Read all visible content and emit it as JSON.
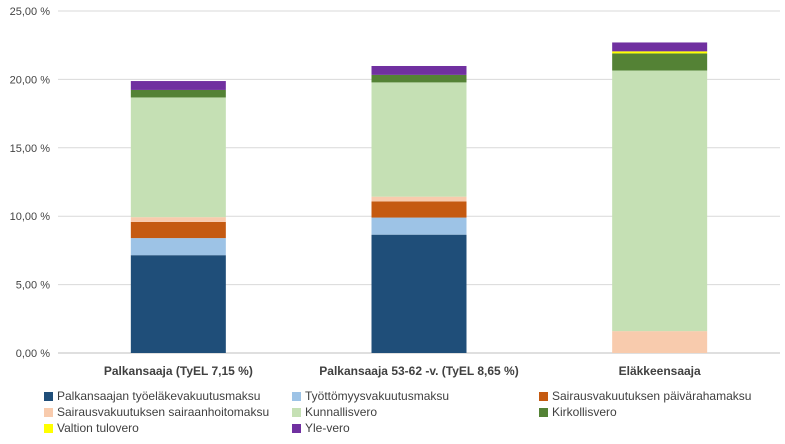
{
  "chart_data": {
    "type": "bar",
    "stacked": true,
    "title": "",
    "xlabel": "",
    "ylabel": "",
    "ylim": [
      0,
      25
    ],
    "y_ticks": [
      0,
      5,
      10,
      15,
      20,
      25
    ],
    "y_tick_labels": [
      "0,00 %",
      "5,00 %",
      "10,00 %",
      "15,00 %",
      "20,00 %",
      "25,00 %"
    ],
    "grid": true,
    "legend_position": "bottom",
    "categories": [
      "Palkansaaja (TyEL 7,15 %)",
      "Palkansaaja 53-62 -v. (TyEL 8,65 %)",
      "Eläkkeensaaja"
    ],
    "series": [
      {
        "name": "Palkansaajan työeläkevakuutusmaksu",
        "color": "#1f4e79",
        "values": [
          7.15,
          8.65,
          0
        ]
      },
      {
        "name": "Työttömyysvakuutusmaksu",
        "color": "#9dc3e6",
        "values": [
          1.25,
          1.25,
          0
        ]
      },
      {
        "name": "Sairausvakuutuksen päivärahamaksu",
        "color": "#c55a11",
        "values": [
          1.18,
          1.18,
          0
        ]
      },
      {
        "name": "Sairausvakuutuksen sairaanhoitomaksu",
        "color": "#f8cbad",
        "values": [
          0.35,
          0.35,
          1.6
        ]
      },
      {
        "name": "Kunnallisvero",
        "color": "#c5e0b4",
        "values": [
          8.75,
          8.35,
          19.05
        ]
      },
      {
        "name": "Kirkollisvero",
        "color": "#548235",
        "values": [
          0.55,
          0.55,
          1.25
        ]
      },
      {
        "name": "Valtion tulovero",
        "color": "#ffff00",
        "values": [
          0,
          0,
          0.15
        ]
      },
      {
        "name": "Yle-vero",
        "color": "#7030a0",
        "values": [
          0.65,
          0.65,
          0.65
        ]
      }
    ]
  }
}
